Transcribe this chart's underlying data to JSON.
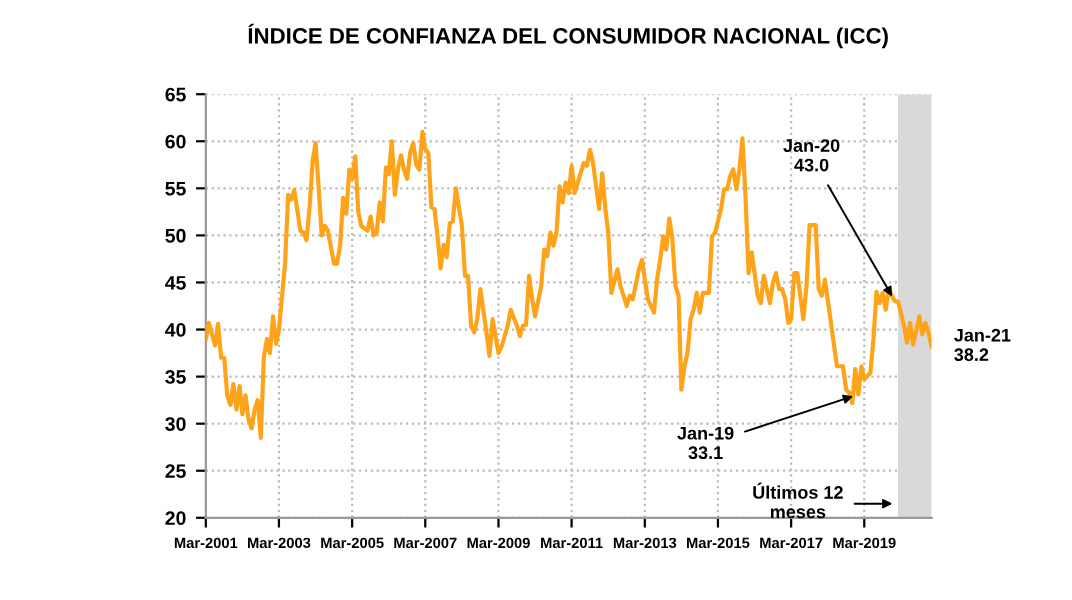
{
  "chart_data": {
    "type": "line",
    "title": "ÍNDICE DE CONFIANZA DEL CONSUMIDOR NACIONAL (ICC)",
    "x": [
      "2001-03",
      "2001-04",
      "2001-06",
      "2001-07",
      "2001-08",
      "2001-09",
      "2001-10",
      "2001-11",
      "2001-12",
      "2002-01",
      "2002-02",
      "2002-03",
      "2002-04",
      "2002-05",
      "2002-06",
      "2002-07",
      "2002-08",
      "2002-09",
      "2002-10",
      "2002-11",
      "2002-12",
      "2003-01",
      "2003-02",
      "2003-03",
      "2003-05",
      "2003-06",
      "2003-07",
      "2003-08",
      "2003-10",
      "2003-11",
      "2003-12",
      "2004-01",
      "2004-02",
      "2004-03",
      "2004-04",
      "2004-05",
      "2004-06",
      "2004-07",
      "2004-09",
      "2004-10",
      "2004-11",
      "2004-12",
      "2005-01",
      "2005-02",
      "2005-03",
      "2005-04",
      "2005-05",
      "2005-06",
      "2005-08",
      "2005-09",
      "2005-10",
      "2005-11",
      "2005-12",
      "2006-01",
      "2006-02",
      "2006-03",
      "2006-04",
      "2006-05",
      "2006-06",
      "2006-07",
      "2006-08",
      "2006-09",
      "2006-10",
      "2006-11",
      "2006-12",
      "2007-01",
      "2007-02",
      "2007-03",
      "2007-04",
      "2007-05",
      "2007-06",
      "2007-07",
      "2007-08",
      "2007-09",
      "2007-10",
      "2007-11",
      "2007-12",
      "2008-01",
      "2008-03",
      "2008-04",
      "2008-05",
      "2008-06",
      "2008-07",
      "2008-08",
      "2008-09",
      "2008-11",
      "2008-12",
      "2009-01",
      "2009-03",
      "2009-04",
      "2009-06",
      "2009-07",
      "2009-09",
      "2009-10",
      "2009-11",
      "2009-12",
      "2010-01",
      "2010-02",
      "2010-03",
      "2010-05",
      "2010-06",
      "2010-07",
      "2010-08",
      "2010-09",
      "2010-10",
      "2010-11",
      "2010-12",
      "2011-01",
      "2011-02",
      "2011-03",
      "2011-04",
      "2011-05",
      "2011-07",
      "2011-08",
      "2011-09",
      "2011-10",
      "2011-11",
      "2011-12",
      "2012-01",
      "2012-02",
      "2012-03",
      "2012-04",
      "2012-06",
      "2012-07",
      "2012-08",
      "2012-09",
      "2012-10",
      "2012-11",
      "2013-01",
      "2013-02",
      "2013-03",
      "2013-04",
      "2013-06",
      "2013-07",
      "2013-08",
      "2013-09",
      "2013-10",
      "2013-11",
      "2013-12",
      "2014-01",
      "2014-02",
      "2014-03",
      "2014-04",
      "2014-05",
      "2014-06",
      "2014-07",
      "2014-08",
      "2014-09",
      "2014-10",
      "2014-12",
      "2015-01",
      "2015-02",
      "2015-04",
      "2015-05",
      "2015-06",
      "2015-07",
      "2015-08",
      "2015-09",
      "2015-10",
      "2015-11",
      "2015-12",
      "2016-01",
      "2016-02",
      "2016-04",
      "2016-05",
      "2016-06",
      "2016-08",
      "2016-09",
      "2016-10",
      "2016-11",
      "2016-12",
      "2017-01",
      "2017-02",
      "2017-03",
      "2017-04",
      "2017-05",
      "2017-07",
      "2017-08",
      "2017-09",
      "2017-11",
      "2017-12",
      "2018-01",
      "2018-02",
      "2018-03",
      "2018-06",
      "2018-08",
      "2018-09",
      "2018-10",
      "2018-11",
      "2018-12",
      "2019-01",
      "2019-02",
      "2019-03",
      "2019-05",
      "2019-06",
      "2019-07",
      "2019-08",
      "2019-09",
      "2019-10",
      "2019-11",
      "2019-12",
      "2020-01",
      "2020-02",
      "2020-04",
      "2020-05",
      "2020-06",
      "2020-07",
      "2020-09",
      "2020-10",
      "2020-11",
      "2020-12",
      "2021-01"
    ],
    "series": [
      {
        "color": "#ffa31a",
        "values": [
          39.0,
          40.7,
          38.3,
          40.6,
          37,
          37,
          33,
          32,
          34.2,
          31.5,
          34,
          31,
          33,
          30.5,
          29.5,
          31.5,
          32.5,
          28.5,
          37,
          39,
          37.5,
          41.4,
          38.5,
          40,
          47,
          54.3,
          53.8,
          54.8,
          50.5,
          50.3,
          49.5,
          53,
          58,
          59.8,
          55,
          50,
          51,
          50.5,
          47,
          47,
          49,
          54,
          52.3,
          57,
          56,
          58.4,
          52.5,
          51,
          50.5,
          52,
          50,
          50.3,
          53.5,
          51.5,
          57.2,
          56.5,
          60,
          54.3,
          57,
          58.5,
          57,
          56,
          58.8,
          59.8,
          57.5,
          57,
          61,
          59.2,
          58.7,
          53,
          52.8,
          50,
          46.5,
          49,
          47.7,
          51.3,
          51.5,
          55,
          51,
          45.7,
          45.7,
          40.4,
          39.7,
          41.1,
          44.3,
          39.7,
          37.2,
          41.1,
          37.5,
          38.2,
          40.4,
          42.1,
          40.4,
          39.3,
          40.4,
          40.5,
          45.7,
          43.2,
          41.4,
          44.6,
          48.5,
          47.8,
          50.3,
          48.9,
          50.3,
          55.2,
          53.5,
          55.6,
          54.5,
          57.4,
          54.5,
          55.6,
          57.7,
          57.4,
          59.1,
          57.7,
          55.2,
          52.8,
          56.6,
          52.8,
          50.3,
          43.9,
          46.4,
          44.6,
          43.6,
          42.5,
          43.6,
          43.2,
          46.4,
          47.4,
          45.3,
          43.2,
          41.8,
          45.3,
          47.4,
          49.9,
          48.5,
          51.8,
          49.6,
          44.6,
          43.6,
          33.6,
          36.1,
          37.5,
          41.1,
          42.1,
          43.9,
          41.8,
          43.9,
          43.9,
          49.9,
          50.3,
          52.8,
          54.9,
          54.9,
          56.3,
          57,
          54.9,
          57,
          60.3,
          54.2,
          46,
          48.2,
          43.6,
          42.8,
          45.7,
          42.8,
          45,
          46,
          44.3,
          44.3,
          43.2,
          40.7,
          41.1,
          46,
          46,
          41.1,
          44.6,
          51.1,
          51.1,
          44.3,
          43.6,
          45.3,
          43.2,
          36.1,
          36.1,
          33.6,
          33.3,
          32.2,
          35.8,
          33.1,
          36.1,
          34.7,
          35.4,
          39,
          44,
          42.8,
          43.9,
          42.1,
          44.3,
          43.6,
          43.0,
          43,
          40.4,
          38.6,
          40.7,
          38.4,
          41.4,
          39.5,
          40.7,
          39.7,
          38.2
        ]
      }
    ],
    "xlim": [
      "2001-03",
      "2021-01"
    ],
    "xticks": [
      {
        "value": "2001-03",
        "label": "Mar-2001"
      },
      {
        "value": "2003-03",
        "label": "Mar-2003"
      },
      {
        "value": "2005-03",
        "label": "Mar-2005"
      },
      {
        "value": "2007-03",
        "label": "Mar-2007"
      },
      {
        "value": "2009-03",
        "label": "Mar-2009"
      },
      {
        "value": "2011-03",
        "label": "Mar-2011"
      },
      {
        "value": "2013-03",
        "label": "Mar-2013"
      },
      {
        "value": "2015-03",
        "label": "Mar-2015"
      },
      {
        "value": "2017-03",
        "label": "Mar-2017"
      },
      {
        "value": "2019-03",
        "label": "Mar-2019"
      }
    ],
    "ylim": [
      20,
      65
    ],
    "yticks": [
      20,
      25,
      30,
      35,
      40,
      45,
      50,
      55,
      60,
      65
    ],
    "grid": true,
    "marker": "none",
    "line_style": "solid",
    "bands": [
      {
        "axis": "x",
        "from": "2020-02",
        "to": "2021-01",
        "label": "Últimos 12\nmeses",
        "color": "#d9d9d9"
      }
    ],
    "annotations": [
      {
        "text": "Jan-20\n43.0",
        "x": "2020-01",
        "y": 43.0
      },
      {
        "text": "Jan-19\n33.1",
        "x": "2019-01",
        "y": 33.1
      },
      "Jan-21\n38.2"
    ]
  }
}
